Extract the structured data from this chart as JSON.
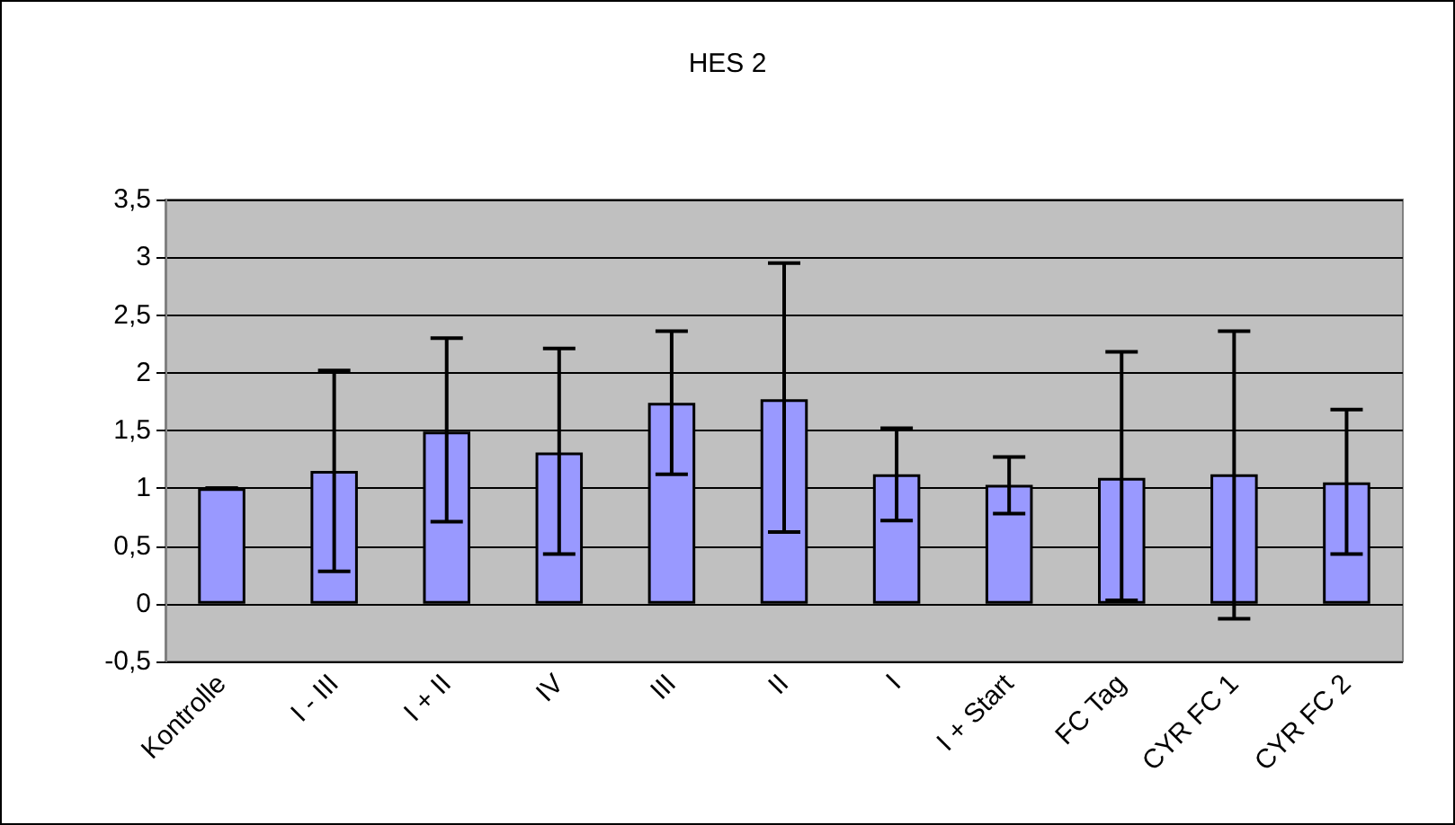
{
  "chart_data": {
    "type": "bar",
    "title": "HES 2",
    "categories": [
      "Kontrolle",
      "I - III",
      "I + II",
      "IV",
      "III",
      "II",
      "I",
      "I + Start",
      "FC Tag",
      "CYR FC 1",
      "CYR FC 2"
    ],
    "values": [
      1.0,
      1.15,
      1.49,
      1.31,
      1.74,
      1.77,
      1.12,
      1.03,
      1.09,
      1.12,
      1.05
    ],
    "errors": [
      [
        1.0,
        1.0
      ],
      [
        0.28,
        2.02
      ],
      [
        0.71,
        2.3
      ],
      [
        0.43,
        2.21
      ],
      [
        1.12,
        2.36
      ],
      [
        0.62,
        2.95
      ],
      [
        0.72,
        1.52
      ],
      [
        0.78,
        1.27
      ],
      [
        0.03,
        2.18
      ],
      [
        -0.13,
        2.36
      ],
      [
        0.43,
        1.68
      ]
    ],
    "color": "#9999ff",
    "ylim": [
      -0.5,
      3.5
    ],
    "yticks": [
      {
        "value": -0.5,
        "label": "-0,5"
      },
      0,
      {
        "value": 0.5,
        "label": "0,5"
      },
      1,
      {
        "value": 1.5,
        "label": "1,5"
      },
      2,
      {
        "value": 2.5,
        "label": "2,5"
      },
      3,
      {
        "value": 3.5,
        "label": "3,5"
      }
    ],
    "grid": "y"
  }
}
